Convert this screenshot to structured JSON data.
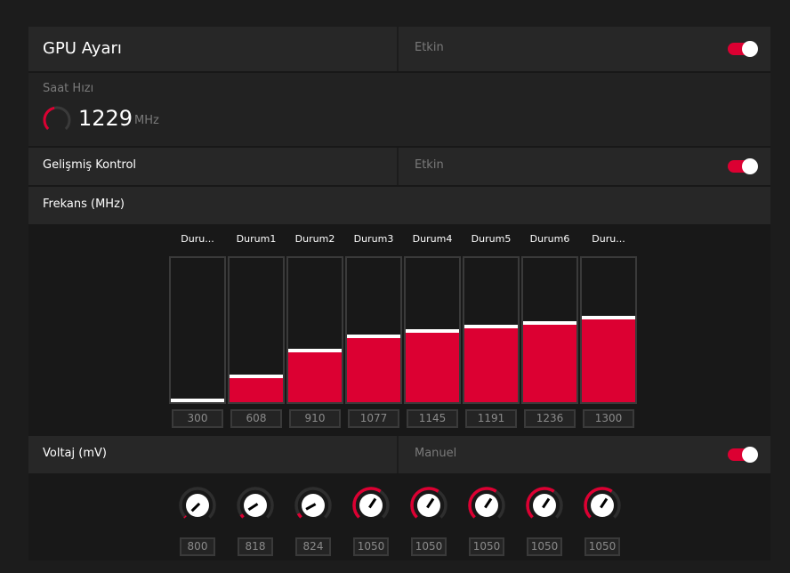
{
  "header": {
    "title": "GPU Ayarı",
    "status": "Etkin",
    "enabled": true
  },
  "clock": {
    "label": "Saat Hızı",
    "value": "1229",
    "unit": "MHz"
  },
  "advanced": {
    "label": "Gelişmiş Kontrol",
    "status": "Etkin",
    "enabled": true
  },
  "frequency": {
    "label": "Frekans (MHz)",
    "states": [
      {
        "name": "Duru...",
        "value": 300
      },
      {
        "name": "Durum1",
        "value": 608
      },
      {
        "name": "Durum2",
        "value": 910
      },
      {
        "name": "Durum3",
        "value": 1077
      },
      {
        "name": "Durum4",
        "value": 1145
      },
      {
        "name": "Durum5",
        "value": 1191
      },
      {
        "name": "Durum6",
        "value": 1236
      },
      {
        "name": "Duru...",
        "value": 1300
      }
    ]
  },
  "voltage": {
    "label": "Voltaj (mV)",
    "mode": "Manuel",
    "enabled": true,
    "values": [
      800,
      818,
      824,
      1050,
      1050,
      1050,
      1050,
      1050
    ]
  },
  "colors": {
    "accent": "#dc0032"
  }
}
